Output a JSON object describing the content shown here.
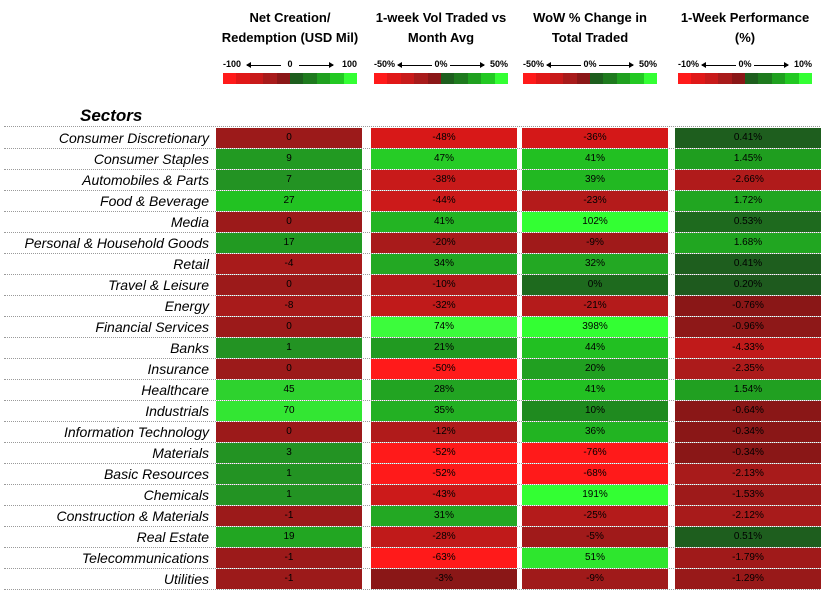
{
  "chart_data": {
    "type": "heatmap",
    "row_header": "Sectors",
    "columns": [
      {
        "key": "net_creation",
        "title": [
          "Net Creation/",
          "Redemption (USD Mil)"
        ],
        "scale": {
          "min_label": "-100",
          "mid_label": "0",
          "max_label": "100",
          "min": -100,
          "max": 100
        }
      },
      {
        "key": "vol_vs_avg",
        "title": [
          "1-week Vol Traded vs",
          "Month Avg"
        ],
        "scale": {
          "min_label": "-50%",
          "mid_label": "0%",
          "max_label": "50%",
          "min": -50,
          "max": 50
        }
      },
      {
        "key": "wow_change",
        "title": [
          "WoW % Change in",
          "Total Traded"
        ],
        "scale": {
          "min_label": "-50%",
          "mid_label": "0%",
          "max_label": "50%",
          "min": -50,
          "max": 50
        }
      },
      {
        "key": "performance",
        "title": [
          "1-Week Performance",
          "(%)"
        ],
        "scale": {
          "min_label": "-10%",
          "mid_label": "0%",
          "max_label": "10%",
          "min": -10,
          "max": 10
        }
      }
    ],
    "legend_colors": [
      "#ff1a1a",
      "#e01818",
      "#c81a1a",
      "#a81b1b",
      "#8a1717",
      "#1e5e1e",
      "#1e7a1e",
      "#1fa01f",
      "#22c822",
      "#33ff33"
    ],
    "rows": [
      {
        "sector": "Consumer Discretionary",
        "net_creation": "0",
        "vol_vs_avg": "-48%",
        "wow_change": "-36%",
        "performance": "0.41%",
        "colors": [
          "#9c1a1a",
          "#d81818",
          "#d41818",
          "#1e5e1e"
        ]
      },
      {
        "sector": "Consumer Staples",
        "net_creation": "9",
        "vol_vs_avg": "47%",
        "wow_change": "41%",
        "performance": "1.45%",
        "colors": [
          "#229a22",
          "#26cc26",
          "#22c022",
          "#1f9e1f"
        ]
      },
      {
        "sector": "Automobiles & Parts",
        "net_creation": "7",
        "vol_vs_avg": "-38%",
        "wow_change": "39%",
        "performance": "-2.66%",
        "colors": [
          "#239323",
          "#c81a1a",
          "#22b822",
          "#b01b1b"
        ]
      },
      {
        "sector": "Food & Beverage",
        "net_creation": "27",
        "vol_vs_avg": "-44%",
        "wow_change": "-23%",
        "performance": "1.72%",
        "colors": [
          "#22c222",
          "#cc1a1a",
          "#b41b1b",
          "#21a621"
        ]
      },
      {
        "sector": "Media",
        "net_creation": "0",
        "vol_vs_avg": "41%",
        "wow_change": "102%",
        "performance": "0.53%",
        "colors": [
          "#9c1a1a",
          "#23b423",
          "#33ff33",
          "#1e6a1e"
        ]
      },
      {
        "sector": "Personal & Household Goods",
        "net_creation": "17",
        "vol_vs_avg": "-20%",
        "wow_change": "-9%",
        "performance": "1.68%",
        "colors": [
          "#229a22",
          "#a81b1b",
          "#a01a1a",
          "#21a621"
        ]
      },
      {
        "sector": "Retail",
        "net_creation": "-4",
        "vol_vs_avg": "34%",
        "wow_change": "32%",
        "performance": "0.41%",
        "colors": [
          "#a81b1b",
          "#23a823",
          "#23a823",
          "#1e5e1e"
        ]
      },
      {
        "sector": "Travel & Leisure",
        "net_creation": "0",
        "vol_vs_avg": "-10%",
        "wow_change": "0%",
        "performance": "0.20%",
        "colors": [
          "#9c1a1a",
          "#b01b1b",
          "#1e6a1e",
          "#1e5a1e"
        ]
      },
      {
        "sector": "Energy",
        "net_creation": "-8",
        "vol_vs_avg": "-32%",
        "wow_change": "-21%",
        "performance": "-0.76%",
        "colors": [
          "#a81b1b",
          "#c01a1a",
          "#b41b1b",
          "#8a1717"
        ]
      },
      {
        "sector": "Financial Services",
        "net_creation": "0",
        "vol_vs_avg": "74%",
        "wow_change": "398%",
        "performance": "-0.96%",
        "colors": [
          "#9c1a1a",
          "#3cfc3c",
          "#33ff33",
          "#8e1818"
        ]
      },
      {
        "sector": "Banks",
        "net_creation": "1",
        "vol_vs_avg": "21%",
        "wow_change": "44%",
        "performance": "-4.33%",
        "colors": [
          "#239323",
          "#219a21",
          "#22c022",
          "#c01a1a"
        ]
      },
      {
        "sector": "Insurance",
        "net_creation": "0",
        "vol_vs_avg": "-50%",
        "wow_change": "20%",
        "performance": "-2.35%",
        "colors": [
          "#9c1a1a",
          "#ff1a1a",
          "#21a021",
          "#ac1b1b"
        ]
      },
      {
        "sector": "Healthcare",
        "net_creation": "45",
        "vol_vs_avg": "28%",
        "wow_change": "41%",
        "performance": "1.54%",
        "colors": [
          "#2ed22e",
          "#22a422",
          "#22c022",
          "#21a021"
        ]
      },
      {
        "sector": "Industrials",
        "net_creation": "70",
        "vol_vs_avg": "35%",
        "wow_change": "10%",
        "performance": "-0.64%",
        "colors": [
          "#33e633",
          "#23b023",
          "#1f8a1f",
          "#8a1717"
        ]
      },
      {
        "sector": "Information Technology",
        "net_creation": "0",
        "vol_vs_avg": "-12%",
        "wow_change": "36%",
        "performance": "-0.34%",
        "colors": [
          "#9c1a1a",
          "#b01b1b",
          "#22b422",
          "#8a1717"
        ]
      },
      {
        "sector": "Materials",
        "net_creation": "3",
        "vol_vs_avg": "-52%",
        "wow_change": "-76%",
        "performance": "-0.34%",
        "colors": [
          "#239323",
          "#ff1a1a",
          "#ff1a1a",
          "#8a1717"
        ]
      },
      {
        "sector": "Basic Resources",
        "net_creation": "1",
        "vol_vs_avg": "-52%",
        "wow_change": "-68%",
        "performance": "-2.13%",
        "colors": [
          "#239323",
          "#ff1a1a",
          "#ff1a1a",
          "#a81b1b"
        ]
      },
      {
        "sector": "Chemicals",
        "net_creation": "1",
        "vol_vs_avg": "-43%",
        "wow_change": "191%",
        "performance": "-1.53%",
        "colors": [
          "#239323",
          "#cc1a1a",
          "#33ff33",
          "#9e1a1a"
        ]
      },
      {
        "sector": "Construction & Materials",
        "net_creation": "-1",
        "vol_vs_avg": "31%",
        "wow_change": "-25%",
        "performance": "-2.12%",
        "colors": [
          "#9c1a1a",
          "#23a823",
          "#b41b1b",
          "#a81b1b"
        ]
      },
      {
        "sector": "Real Estate",
        "net_creation": "19",
        "vol_vs_avg": "-28%",
        "wow_change": "-5%",
        "performance": "0.51%",
        "colors": [
          "#22a622",
          "#c01a1a",
          "#a01a1a",
          "#1e5e1e"
        ]
      },
      {
        "sector": "Telecommunications",
        "net_creation": "-1",
        "vol_vs_avg": "-63%",
        "wow_change": "51%",
        "performance": "-1.79%",
        "colors": [
          "#9c1a1a",
          "#ff1a1a",
          "#2ee62e",
          "#a01a1a"
        ]
      },
      {
        "sector": "Utilities",
        "net_creation": "-1",
        "vol_vs_avg": "-3%",
        "wow_change": "-9%",
        "performance": "-1.29%",
        "colors": [
          "#9c1a1a",
          "#8a1717",
          "#a01a1a",
          "#981919"
        ]
      }
    ]
  }
}
